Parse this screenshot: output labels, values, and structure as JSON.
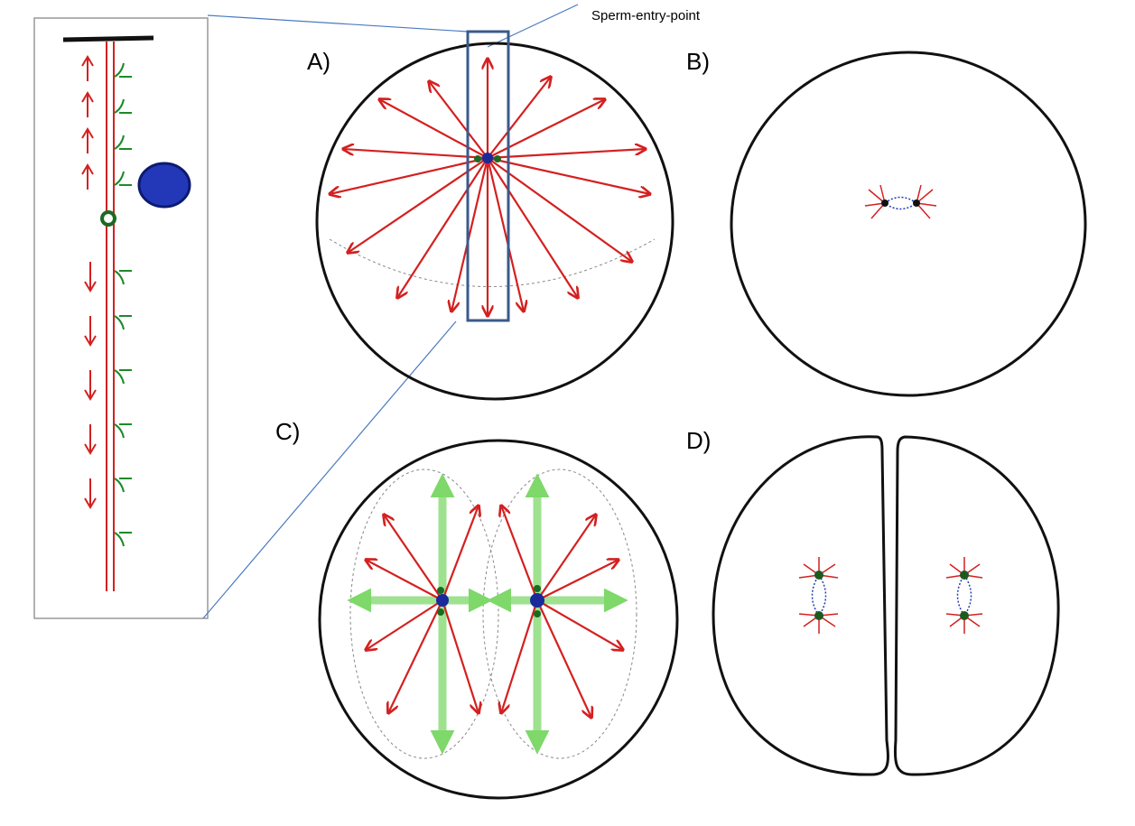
{
  "annotation": "Sperm-entry-point",
  "panels": [
    {
      "label": "A)"
    },
    {
      "label": "B)"
    },
    {
      "label": "C)"
    },
    {
      "label": "D)"
    }
  ]
}
